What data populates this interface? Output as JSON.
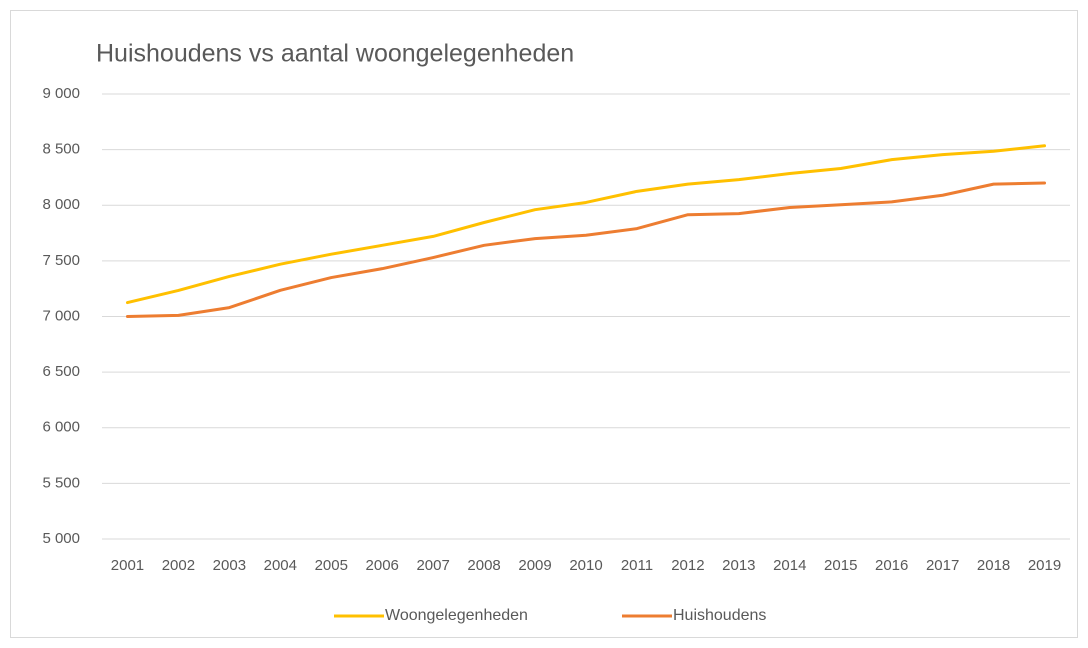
{
  "chart_data": {
    "type": "line",
    "title": "Huishoudens vs aantal woongelegenheden",
    "categories": [
      "2001",
      "2002",
      "2003",
      "2004",
      "2005",
      "2006",
      "2007",
      "2008",
      "2009",
      "2010",
      "2011",
      "2012",
      "2013",
      "2014",
      "2015",
      "2016",
      "2017",
      "2018",
      "2019"
    ],
    "series": [
      {
        "name": "Woongelegenheden",
        "color": "#ffc000",
        "values": [
          7125,
          7234,
          7360,
          7470,
          7560,
          7640,
          7720,
          7845,
          7960,
          8025,
          8125,
          8190,
          8230,
          8285,
          8330,
          8410,
          8455,
          8485,
          8535
        ]
      },
      {
        "name": "Huishoudens",
        "color": "#ed7d31",
        "values": [
          7000,
          7010,
          7080,
          7235,
          7350,
          7430,
          7530,
          7640,
          7700,
          7730,
          7790,
          7915,
          7925,
          7980,
          8005,
          8030,
          8090,
          8190,
          8200
        ]
      }
    ],
    "ylim": [
      5000,
      9000
    ],
    "yticks": [
      {
        "value": 5000,
        "label": "5 000"
      },
      {
        "value": 5500,
        "label": "5 500"
      },
      {
        "value": 6000,
        "label": "6 000"
      },
      {
        "value": 6500,
        "label": "6 500"
      },
      {
        "value": 7000,
        "label": "7 000"
      },
      {
        "value": 7500,
        "label": "7 500"
      },
      {
        "value": 8000,
        "label": "8 000"
      },
      {
        "value": 8500,
        "label": "8 500"
      },
      {
        "value": 9000,
        "label": "9 000"
      }
    ],
    "grid": true,
    "legend": "bottom"
  }
}
